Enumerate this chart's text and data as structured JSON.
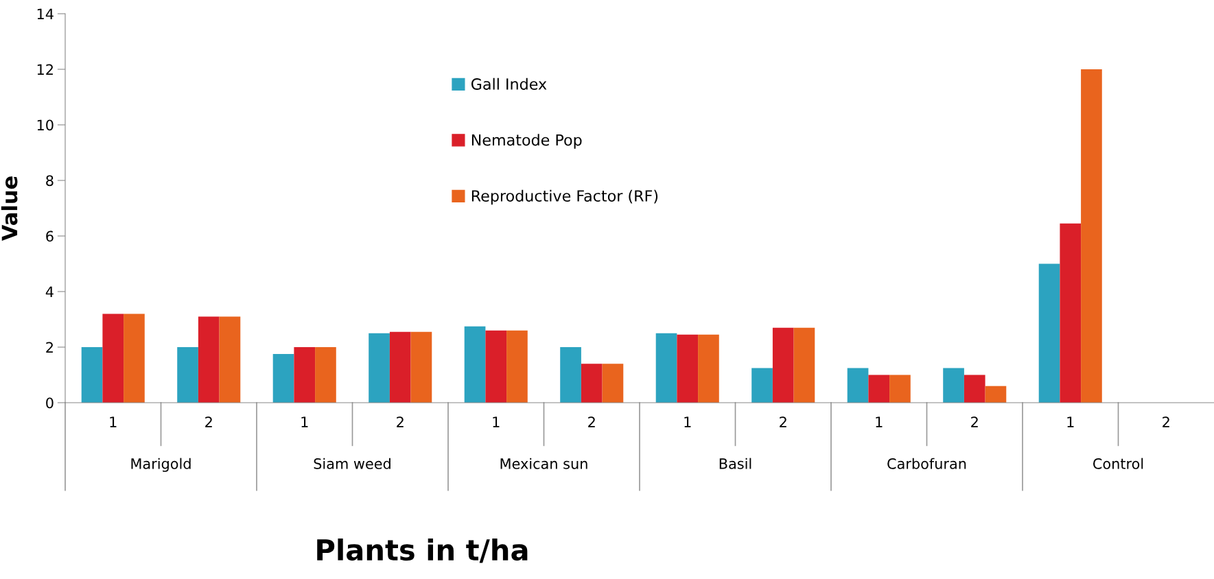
{
  "chart_data": {
    "type": "bar",
    "xlabel": "Plants in t/ha",
    "ylabel": "Value",
    "categories": [
      "1",
      "2",
      "1",
      "2",
      "1",
      "2",
      "1",
      "2",
      "1",
      "2",
      "1",
      "2"
    ],
    "annotations": [
      "Marigold",
      "Siam weed",
      "Mexican sun",
      "Basil",
      "Carbofuran",
      "Control"
    ],
    "series": [
      {
        "name": "Gall Index",
        "color": "#2ca3c0",
        "values": [
          2.0,
          2.0,
          1.75,
          2.5,
          2.75,
          2.0,
          2.5,
          1.25,
          1.25,
          1.25,
          5.0,
          null
        ]
      },
      {
        "name": "Nematode Pop",
        "color": "#da1f29",
        "values": [
          3.2,
          3.1,
          2.0,
          2.55,
          2.6,
          1.4,
          2.45,
          2.7,
          1.0,
          1.0,
          6.45,
          null
        ]
      },
      {
        "name": "Reproductive Factor (RF)",
        "color": "#e9641e",
        "values": [
          3.2,
          3.1,
          2.0,
          2.55,
          2.6,
          1.4,
          2.45,
          2.7,
          1.0,
          0.6,
          12.0,
          null
        ]
      }
    ],
    "ylim": [
      0,
      14
    ],
    "yticks": [
      0,
      2,
      4,
      6,
      8,
      10,
      12,
      14
    ],
    "grid": false,
    "legend": "top"
  }
}
